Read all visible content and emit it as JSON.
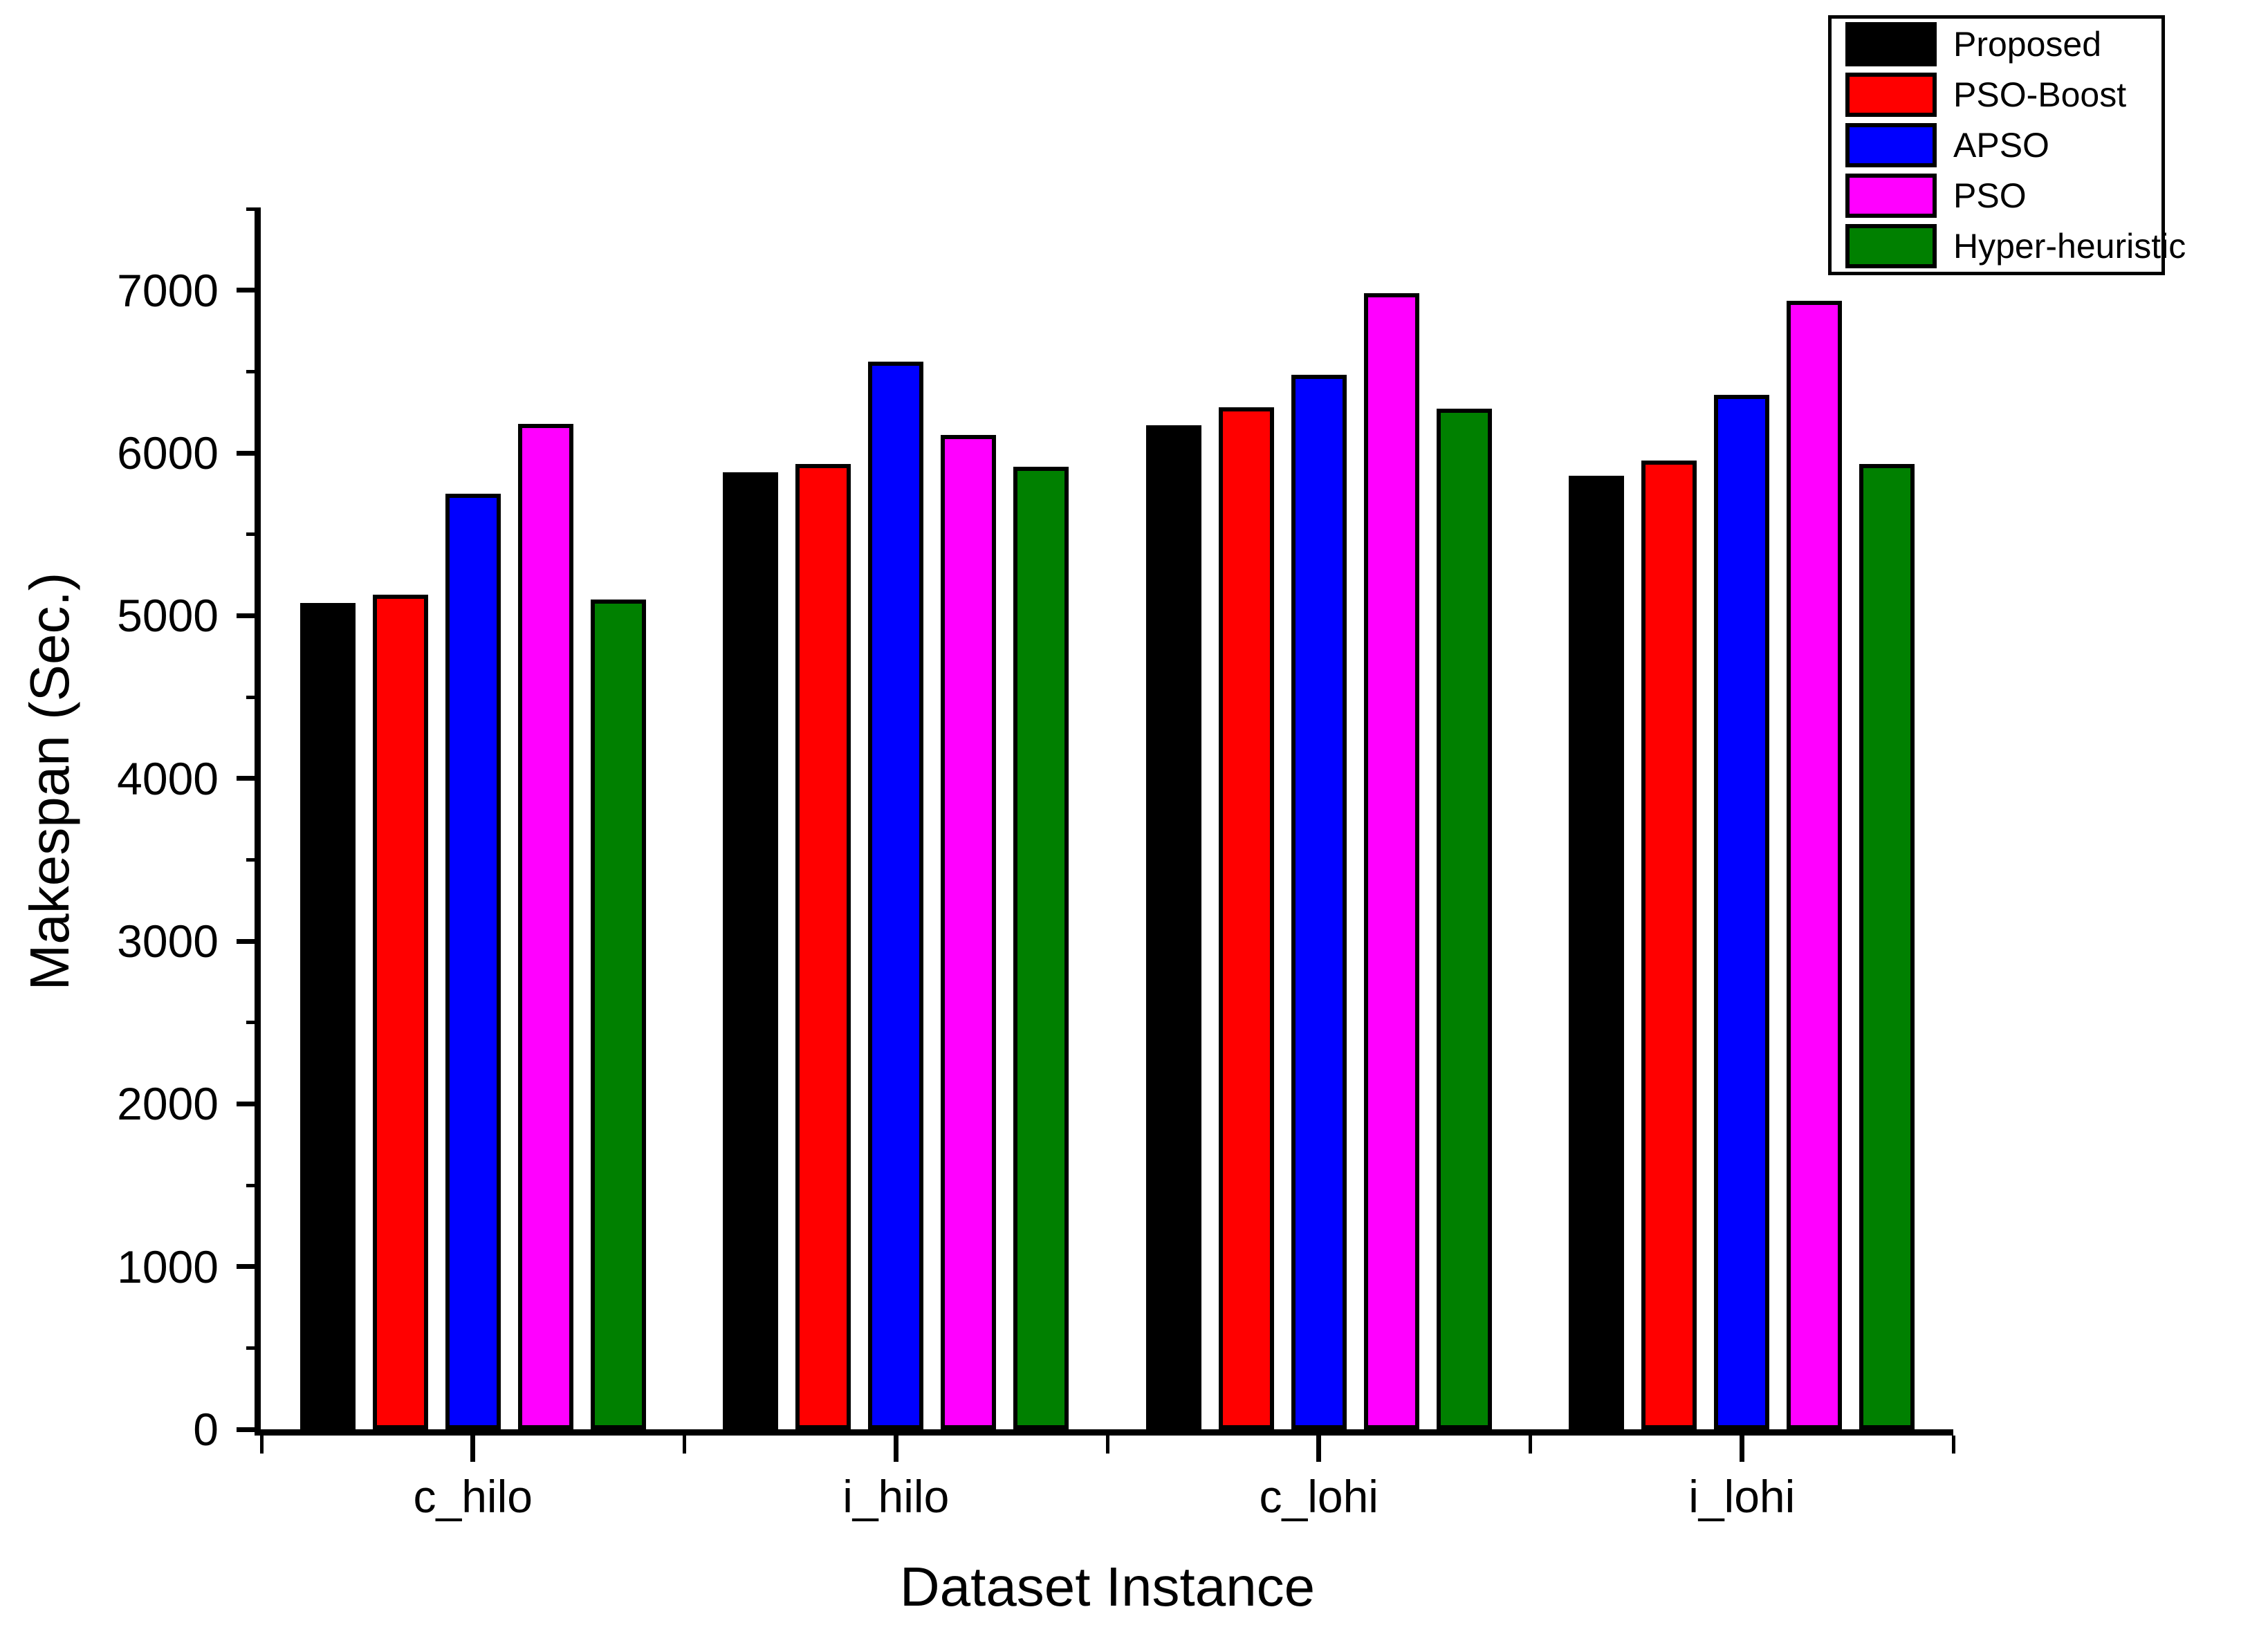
{
  "chart_data": {
    "type": "bar",
    "title": "",
    "xlabel": "Dataset Instance",
    "ylabel": "Makespan (Sec.)",
    "categories": [
      "c_hilo",
      "i_hilo",
      "c_lohi",
      "i_lohi"
    ],
    "series": [
      {
        "name": "Proposed",
        "color": "#000000",
        "values": [
          5080,
          5880,
          6170,
          5860
        ]
      },
      {
        "name": "PSO-Boost",
        "color": "#ff0000",
        "values": [
          5130,
          5930,
          6280,
          5955
        ]
      },
      {
        "name": "APSO",
        "color": "#0000ff",
        "values": [
          5750,
          6560,
          6480,
          6355
        ]
      },
      {
        "name": "PSO",
        "color": "#ff00ff",
        "values": [
          6180,
          6110,
          6980,
          6935
        ]
      },
      {
        "name": "Hyper-heuristic",
        "color": "#008000",
        "values": [
          5100,
          5915,
          6270,
          5930
        ]
      }
    ],
    "ylim": [
      0,
      7500
    ],
    "y_major_ticks": [
      0,
      1000,
      2000,
      3000,
      4000,
      5000,
      6000,
      7000
    ],
    "y_minor_step": 500,
    "grid": false,
    "legend_position": "top-right",
    "bar_border_color": "#000000",
    "axis_color": "#000000",
    "background": "#ffffff"
  }
}
